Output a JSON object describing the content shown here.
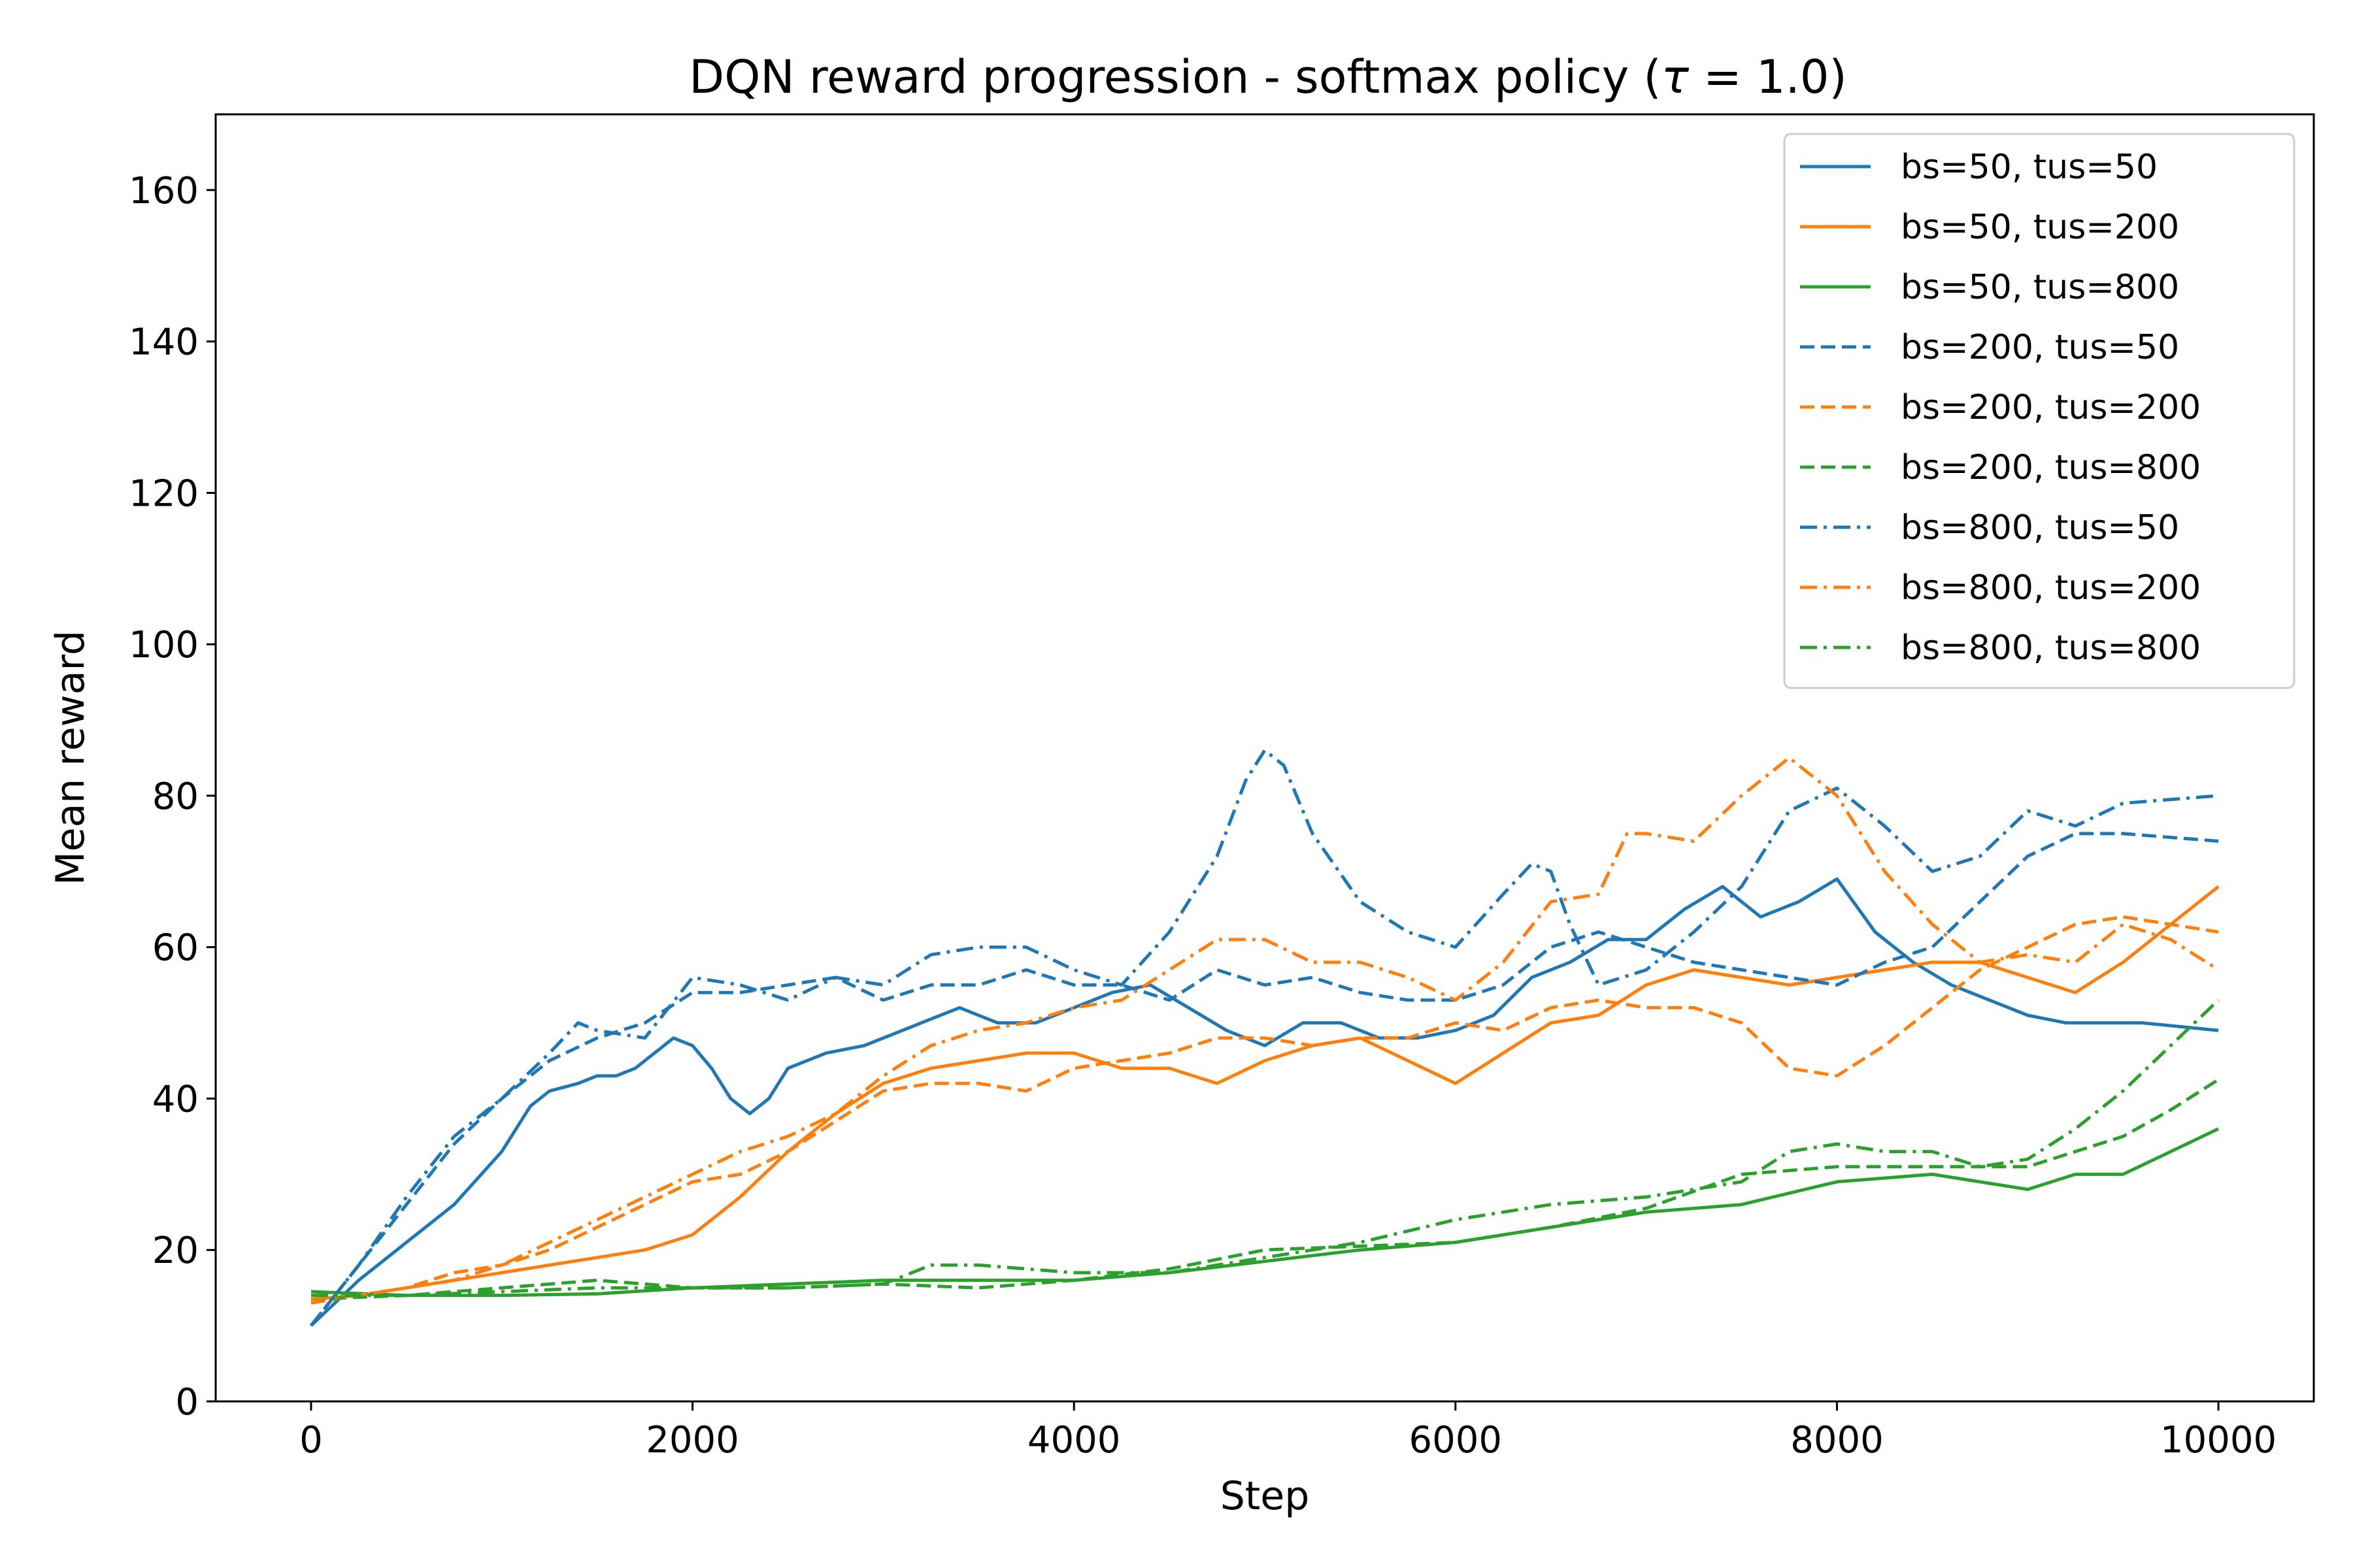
{
  "chart_data": {
    "type": "line",
    "title": "DQN reward progression - softmax policy (τ = 1.0)",
    "title_parts": {
      "prefix": "DQN reward progression - softmax policy (",
      "symbol": "τ",
      "suffix": " = 1.0)"
    },
    "xlabel": "Step",
    "ylabel": "Mean reward",
    "xlim": [
      -500,
      10500
    ],
    "ylim": [
      0,
      170
    ],
    "xticks": [
      0,
      2000,
      4000,
      6000,
      8000,
      10000
    ],
    "yticks": [
      0,
      20,
      40,
      60,
      80,
      100,
      120,
      140,
      160
    ],
    "grid": false,
    "legend_position": "top-right",
    "colors": {
      "blue": "#1f77b4",
      "orange": "#ff7f0e",
      "green": "#2ca02c"
    },
    "series": [
      {
        "name": "bs=50, tus=50",
        "color": "#1f77b4",
        "style": "solid",
        "x": [
          0,
          250,
          500,
          750,
          1000,
          1150,
          1250,
          1400,
          1500,
          1600,
          1700,
          1800,
          1900,
          2000,
          2100,
          2200,
          2300,
          2400,
          2500,
          2700,
          2900,
          3000,
          3200,
          3400,
          3600,
          3800,
          4000,
          4200,
          4400,
          4600,
          4800,
          5000,
          5200,
          5400,
          5600,
          5800,
          6000,
          6200,
          6400,
          6600,
          6800,
          7000,
          7200,
          7400,
          7600,
          7800,
          8000,
          8200,
          8400,
          8600,
          8800,
          9000,
          9200,
          9400,
          9600,
          9800,
          10000
        ],
        "y": [
          10,
          16,
          21,
          26,
          33,
          39,
          41,
          42,
          43,
          43,
          44,
          46,
          48,
          47,
          44,
          40,
          38,
          40,
          44,
          46,
          47,
          48,
          50,
          52,
          50,
          50,
          52,
          54,
          55,
          52,
          49,
          47,
          50,
          50,
          48,
          48,
          49,
          51,
          56,
          58,
          61,
          61,
          65,
          68,
          64,
          66,
          69,
          62,
          58,
          55,
          53,
          51,
          50,
          50,
          50,
          49.5,
          49
        ]
      },
      {
        "name": "bs=50, tus=200",
        "color": "#ff7f0e",
        "style": "solid",
        "x": [
          0,
          250,
          500,
          750,
          1000,
          1250,
          1500,
          1750,
          2000,
          2250,
          2500,
          2750,
          3000,
          3250,
          3500,
          3750,
          4000,
          4250,
          4500,
          4750,
          5000,
          5250,
          5500,
          5750,
          6000,
          6250,
          6500,
          6750,
          7000,
          7250,
          7500,
          7750,
          8000,
          8250,
          8500,
          8750,
          9000,
          9250,
          9500,
          9750,
          10000
        ],
        "y": [
          13.5,
          14,
          15,
          16,
          17,
          18,
          19,
          20,
          22,
          27,
          33,
          38,
          42,
          44,
          45,
          46,
          46,
          44,
          44,
          42,
          45,
          47,
          48,
          45,
          42,
          46,
          50,
          51,
          55,
          57,
          56,
          55,
          56,
          57,
          58,
          58,
          56,
          54,
          58,
          63,
          68
        ]
      },
      {
        "name": "bs=50, tus=800",
        "color": "#2ca02c",
        "style": "solid",
        "x": [
          0,
          500,
          1000,
          1500,
          2000,
          2500,
          3000,
          3500,
          4000,
          4500,
          5000,
          5500,
          6000,
          6500,
          7000,
          7500,
          8000,
          8500,
          9000,
          9250,
          9500,
          9750,
          10000
        ],
        "y": [
          14.5,
          14,
          14,
          14.2,
          15,
          15.5,
          16,
          16,
          16,
          17,
          18.5,
          20,
          21,
          23,
          25,
          26,
          29,
          30,
          28,
          30,
          30,
          33,
          36
        ]
      },
      {
        "name": "bs=200, tus=50",
        "color": "#1f77b4",
        "style": "dashed",
        "x": [
          0,
          250,
          500,
          750,
          1000,
          1250,
          1500,
          1750,
          2000,
          2250,
          2500,
          2750,
          3000,
          3250,
          3500,
          3750,
          4000,
          4250,
          4500,
          4750,
          5000,
          5250,
          5500,
          5750,
          6000,
          6250,
          6500,
          6750,
          7000,
          7250,
          7500,
          7750,
          8000,
          8250,
          8500,
          8750,
          9000,
          9250,
          9500,
          9750,
          10000
        ],
        "y": [
          10,
          18,
          26,
          34,
          40,
          45,
          48,
          50,
          54,
          54,
          55,
          56,
          53,
          55,
          55,
          57,
          55,
          55,
          53,
          57,
          55,
          56,
          54,
          53,
          53,
          55,
          60,
          62,
          60,
          58,
          57,
          56,
          55,
          58,
          60,
          66,
          72,
          75,
          75,
          74.5,
          74
        ]
      },
      {
        "name": "bs=200, tus=200",
        "color": "#ff7f0e",
        "style": "dashed",
        "x": [
          0,
          500,
          750,
          1000,
          1250,
          1500,
          1750,
          2000,
          2250,
          2500,
          2750,
          3000,
          3250,
          3500,
          3750,
          4000,
          4250,
          4500,
          4750,
          5000,
          5250,
          5500,
          5750,
          6000,
          6250,
          6500,
          6750,
          7000,
          7250,
          7500,
          7750,
          8000,
          8250,
          8500,
          8750,
          9000,
          9250,
          9500,
          9750,
          10000
        ],
        "y": [
          13,
          15,
          17,
          18,
          20,
          23,
          26,
          29,
          30,
          33,
          37,
          41,
          42,
          42,
          41,
          44,
          45,
          46,
          48,
          48,
          47,
          48,
          48,
          50,
          49,
          52,
          53,
          52,
          52,
          50,
          44,
          43,
          47,
          52,
          57,
          60,
          63,
          64,
          63,
          62
        ]
      },
      {
        "name": "bs=200, tus=800",
        "color": "#2ca02c",
        "style": "dashed",
        "x": [
          0,
          500,
          1000,
          1500,
          2000,
          2500,
          3000,
          3500,
          4000,
          4500,
          5000,
          5500,
          6000,
          6500,
          7000,
          7500,
          8000,
          8500,
          9000,
          9500,
          9750,
          10000
        ],
        "y": [
          13.5,
          14,
          15,
          16,
          15,
          15,
          15.5,
          15,
          16,
          17.5,
          20,
          20.5,
          21,
          23,
          25.5,
          30,
          31,
          31,
          31,
          35,
          38.5,
          42.5
        ]
      },
      {
        "name": "bs=800, tus=50",
        "color": "#1f77b4",
        "style": "dashdot",
        "x": [
          0,
          250,
          500,
          750,
          1000,
          1250,
          1400,
          1500,
          1750,
          2000,
          2250,
          2500,
          2750,
          3000,
          3250,
          3500,
          3750,
          4000,
          4250,
          4500,
          4750,
          4900,
          5000,
          5100,
          5250,
          5500,
          5750,
          6000,
          6250,
          6400,
          6500,
          6600,
          6750,
          7000,
          7250,
          7500,
          7750,
          8000,
          8250,
          8500,
          8750,
          9000,
          9250,
          9500,
          9750,
          10000
        ],
        "y": [
          10,
          18,
          27,
          35,
          40,
          46,
          50,
          49,
          48,
          56,
          55,
          53,
          56,
          55,
          59,
          60,
          60,
          57,
          55,
          62,
          72,
          82,
          86,
          84,
          75,
          66,
          62,
          60,
          67,
          71,
          70,
          63,
          55,
          57,
          62,
          68,
          78,
          81,
          76,
          70,
          72,
          78,
          76,
          79,
          79.5,
          80
        ]
      },
      {
        "name": "bs=800, tus=200",
        "color": "#ff7f0e",
        "style": "dashdot",
        "x": [
          0,
          250,
          500,
          750,
          1000,
          1250,
          1500,
          1750,
          2000,
          2250,
          2500,
          2750,
          3000,
          3250,
          3500,
          3750,
          4000,
          4250,
          4500,
          4750,
          5000,
          5250,
          5500,
          5750,
          6000,
          6250,
          6500,
          6750,
          6900,
          7000,
          7250,
          7500,
          7750,
          8000,
          8250,
          8500,
          8750,
          9000,
          9250,
          9500,
          9750,
          10000
        ],
        "y": [
          13.5,
          14,
          15,
          16,
          18,
          21,
          24,
          27,
          30,
          33,
          35,
          38,
          43,
          47,
          49,
          50,
          52,
          53,
          57,
          61,
          61,
          58,
          58,
          56,
          53,
          58,
          66,
          67,
          75,
          75,
          74,
          80,
          85,
          80,
          70,
          63,
          58,
          59,
          58,
          63,
          61,
          57
        ]
      },
      {
        "name": "bs=800, tus=800",
        "color": "#2ca02c",
        "style": "dashdot",
        "x": [
          0,
          500,
          1000,
          1500,
          2000,
          2500,
          3000,
          3250,
          3500,
          4000,
          4500,
          5000,
          5500,
          6000,
          6250,
          6500,
          7000,
          7500,
          7750,
          8000,
          8250,
          8500,
          8750,
          9000,
          9250,
          9500,
          9750,
          10000
        ],
        "y": [
          14,
          14,
          14.5,
          15,
          15,
          15,
          15.5,
          18,
          18,
          17,
          17,
          19,
          21,
          24,
          25,
          26,
          27,
          29,
          33,
          34,
          33,
          33,
          31,
          32,
          36,
          41,
          47,
          53
        ]
      }
    ]
  }
}
